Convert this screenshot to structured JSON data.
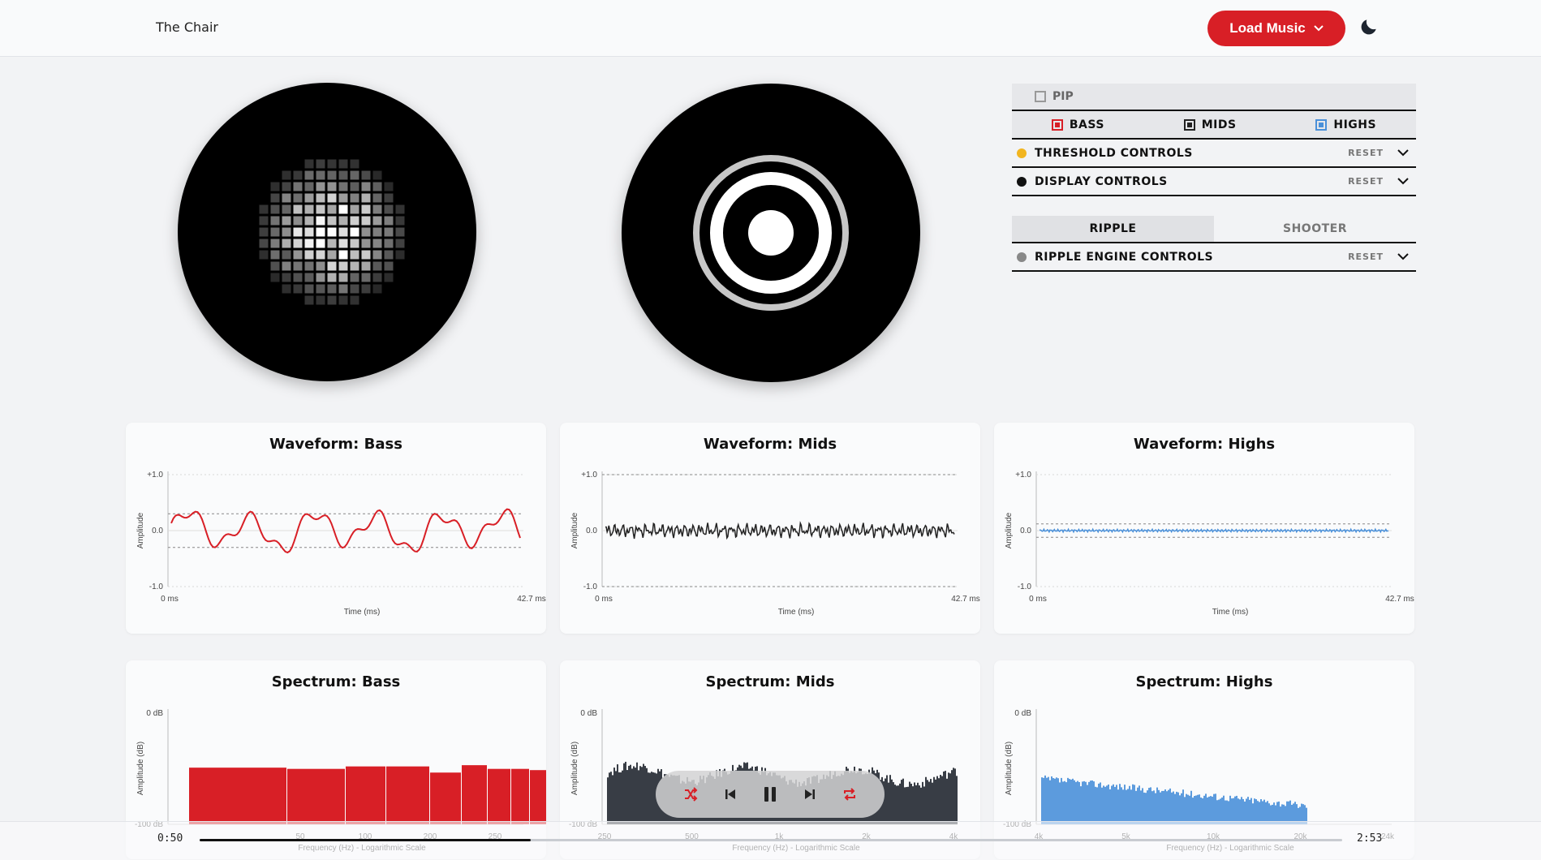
{
  "app": {
    "title": "The Chair"
  },
  "header": {
    "load_label": "Load Music"
  },
  "panel": {
    "pip_label": "PIP",
    "bands": [
      {
        "label": "BASS",
        "color": "#d81f26"
      },
      {
        "label": "MIDS",
        "color": "#222222"
      },
      {
        "label": "HIGHS",
        "color": "#4a90d9"
      }
    ],
    "threshold": {
      "label": "THRESHOLD CONTROLS",
      "reset": "RESET",
      "dot_color": "#f2b51f"
    },
    "display": {
      "label": "DISPLAY CONTROLS",
      "reset": "RESET",
      "dot_color": "#111111"
    },
    "mode_tabs": [
      {
        "label": "RIPPLE",
        "active": true
      },
      {
        "label": "SHOOTER",
        "active": false
      }
    ],
    "engine": {
      "label": "RIPPLE ENGINE CONTROLS",
      "reset": "RESET",
      "dot_color": "#888888"
    }
  },
  "waveforms": [
    {
      "title": "Waveform: Bass",
      "color": "#d81f26",
      "ylabel": "Amplitude",
      "xlabel": "Time (ms)",
      "y_ticks": [
        "+1.0",
        "0.0",
        "-1.0"
      ],
      "x_ticks": [
        "0 ms",
        "42.7 ms"
      ],
      "threshold": 0.3
    },
    {
      "title": "Waveform: Mids",
      "color": "#222222",
      "ylabel": "Amplitude",
      "xlabel": "Time (ms)",
      "y_ticks": [
        "+1.0",
        "0.0",
        "-1.0"
      ],
      "x_ticks": [
        "0 ms",
        "42.7 ms"
      ],
      "threshold": 1.0
    },
    {
      "title": "Waveform: Highs",
      "color": "#4a90d9",
      "ylabel": "Amplitude",
      "xlabel": "Time (ms)",
      "y_ticks": [
        "+1.0",
        "0.0",
        "-1.0"
      ],
      "x_ticks": [
        "0 ms",
        "42.7 ms"
      ],
      "threshold": 0.12
    }
  ],
  "spectra": [
    {
      "title": "Spectrum: Bass",
      "color": "#d81f26",
      "ylabel": "Amplitude (dB)",
      "xlabel": "Frequency (Hz) - Logarithmic Scale",
      "y_ticks": [
        "0 dB",
        "-100 dB"
      ],
      "x_ticks": [
        "50",
        "100",
        "200",
        "250"
      ]
    },
    {
      "title": "Spectrum: Mids",
      "color": "#222831",
      "ylabel": "Amplitude (dB)",
      "xlabel": "Frequency (Hz) - Logarithmic Scale",
      "y_ticks": [
        "0 dB",
        "-100 dB"
      ],
      "x_ticks": [
        "250",
        "500",
        "1k",
        "2k",
        "4k"
      ]
    },
    {
      "title": "Spectrum: Highs",
      "color": "#4a90d9",
      "ylabel": "Amplitude (dB)",
      "xlabel": "Frequency (Hz) - Logarithmic Scale",
      "y_ticks": [
        "0 dB",
        "-100 dB"
      ],
      "x_ticks": [
        "4k",
        "5k",
        "10k",
        "20k",
        "24k"
      ]
    }
  ],
  "player": {
    "elapsed": "0:50",
    "total": "2:53",
    "progress": 0.29
  }
}
